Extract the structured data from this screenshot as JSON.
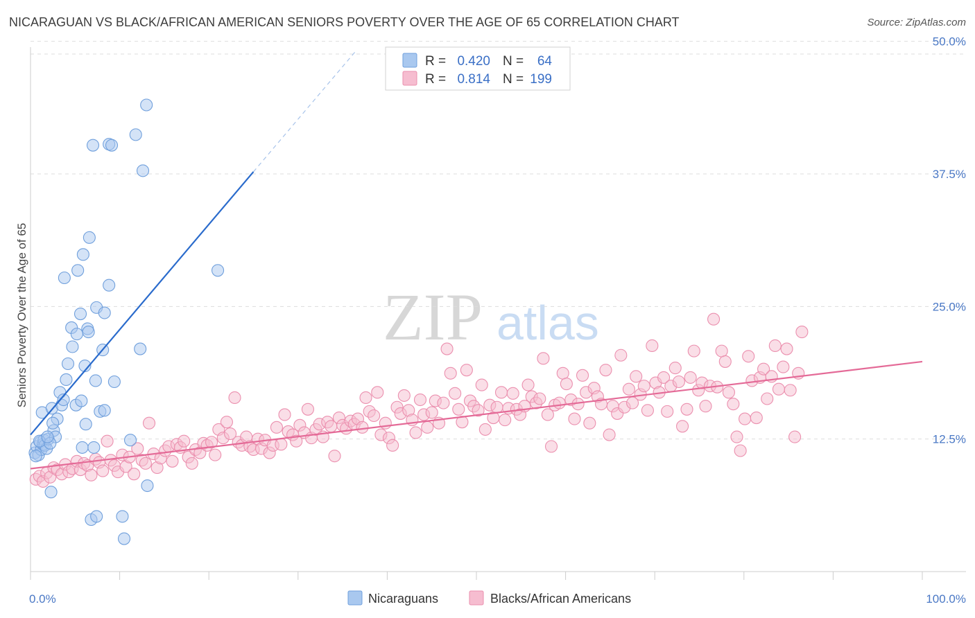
{
  "title": "NICARAGUAN VS BLACK/AFRICAN AMERICAN SENIORS POVERTY OVER THE AGE OF 65 CORRELATION CHART",
  "source": "Source: ZipAtlas.com",
  "watermark": {
    "zip": "ZIP",
    "atlas": "atlas"
  },
  "colors": {
    "blue_fill": "#a9c8ef",
    "blue_stroke": "#6f9fdc",
    "blue_line": "#2a6bcc",
    "pink_fill": "#f6bdd0",
    "pink_stroke": "#eb8fae",
    "pink_line": "#e46a97",
    "tick_label": "#4a78c5",
    "grid": "#dddddd"
  },
  "legend": {
    "rows": [
      {
        "r_label": "R =",
        "r_value": "0.420",
        "n_label": "N =",
        "n_value": "64",
        "color": "blue"
      },
      {
        "r_label": "R =",
        "r_value": "0.814",
        "n_label": "N =",
        "n_value": "199",
        "color": "pink"
      }
    ]
  },
  "bottom_legend": [
    {
      "label": "Nicaraguans",
      "color": "blue"
    },
    {
      "label": "Blacks/African Americans",
      "color": "pink"
    }
  ],
  "chart_data": {
    "type": "scatter",
    "title": "NICARAGUAN VS BLACK/AFRICAN AMERICAN SENIORS POVERTY OVER THE AGE OF 65 CORRELATION CHART",
    "xlabel": "",
    "ylabel": "Seniors Poverty Over the Age of 65",
    "xlim": [
      0,
      100
    ],
    "ylim": [
      0,
      52
    ],
    "x_tick_labels": [
      "0.0%",
      "100.0%"
    ],
    "y_ticks": [
      12.5,
      25.0,
      37.5,
      50.0
    ],
    "y_tick_labels": [
      "12.5%",
      "25.0%",
      "37.5%",
      "50.0%"
    ],
    "grid": "horizontal dashed",
    "legend_position": "top-center",
    "series": [
      {
        "name": "Nicaraguans",
        "color": "blue",
        "r": 0.42,
        "n": 64,
        "trend": {
          "x0": 0.0,
          "y0": 12.9,
          "x1": 25.0,
          "y1": 37.7,
          "dash_to_x": 36.5
        },
        "points": [
          [
            0.5,
            11.2
          ],
          [
            0.7,
            11.8
          ],
          [
            0.9,
            11.0
          ],
          [
            1.1,
            12.2
          ],
          [
            1.2,
            11.5
          ],
          [
            1.4,
            12.0
          ],
          [
            1.5,
            12.4
          ],
          [
            1.6,
            11.9
          ],
          [
            1.8,
            11.6
          ],
          [
            2.0,
            12.5
          ],
          [
            1.3,
            15.0
          ],
          [
            2.4,
            15.4
          ],
          [
            2.6,
            13.3
          ],
          [
            2.8,
            12.7
          ],
          [
            3.0,
            14.4
          ],
          [
            2.5,
            14.0
          ],
          [
            3.3,
            16.9
          ],
          [
            3.5,
            15.7
          ],
          [
            3.7,
            16.2
          ],
          [
            4.0,
            18.1
          ],
          [
            4.2,
            19.6
          ],
          [
            3.8,
            27.7
          ],
          [
            4.6,
            23.0
          ],
          [
            4.7,
            21.2
          ],
          [
            5.1,
            15.7
          ],
          [
            5.2,
            22.4
          ],
          [
            5.3,
            28.4
          ],
          [
            5.6,
            24.3
          ],
          [
            5.9,
            29.9
          ],
          [
            5.7,
            16.1
          ],
          [
            5.8,
            11.7
          ],
          [
            6.1,
            19.4
          ],
          [
            6.2,
            13.9
          ],
          [
            6.4,
            22.9
          ],
          [
            6.5,
            22.6
          ],
          [
            6.6,
            31.5
          ],
          [
            7.1,
            11.7
          ],
          [
            7.3,
            18.0
          ],
          [
            7.4,
            24.9
          ],
          [
            7.8,
            15.1
          ],
          [
            8.3,
            15.2
          ],
          [
            8.1,
            20.9
          ],
          [
            8.3,
            24.4
          ],
          [
            8.8,
            27.0
          ],
          [
            9.4,
            17.9
          ],
          [
            6.8,
            4.9
          ],
          [
            7.4,
            5.2
          ],
          [
            10.3,
            5.2
          ],
          [
            10.5,
            3.1
          ],
          [
            7.0,
            40.2
          ],
          [
            8.8,
            40.3
          ],
          [
            9.1,
            40.2
          ],
          [
            11.8,
            41.2
          ],
          [
            12.6,
            37.8
          ],
          [
            13.0,
            44.0
          ],
          [
            11.2,
            12.4
          ],
          [
            12.3,
            21.0
          ],
          [
            13.1,
            8.1
          ],
          [
            21.0,
            28.4
          ],
          [
            2.3,
            7.5
          ],
          [
            1.0,
            12.3
          ],
          [
            0.6,
            10.9
          ],
          [
            2.2,
            12.1
          ],
          [
            1.9,
            12.7
          ]
        ]
      },
      {
        "name": "Blacks/African Americans",
        "color": "pink",
        "r": 0.814,
        "n": 199,
        "trend": {
          "x0": 0.0,
          "y0": 9.7,
          "x1": 100.0,
          "y1": 19.8
        },
        "points": [
          [
            0.6,
            8.7
          ],
          [
            1.0,
            9.0
          ],
          [
            1.4,
            8.5
          ],
          [
            1.8,
            9.3
          ],
          [
            2.2,
            8.9
          ],
          [
            2.6,
            9.8
          ],
          [
            3.0,
            9.6
          ],
          [
            3.5,
            9.2
          ],
          [
            3.9,
            10.1
          ],
          [
            4.3,
            9.4
          ],
          [
            4.7,
            9.7
          ],
          [
            5.2,
            10.4
          ],
          [
            5.6,
            9.6
          ],
          [
            6.0,
            10.2
          ],
          [
            6.4,
            10.0
          ],
          [
            6.8,
            9.1
          ],
          [
            7.3,
            10.6
          ],
          [
            7.7,
            10.3
          ],
          [
            8.1,
            9.5
          ],
          [
            8.6,
            12.3
          ],
          [
            9.0,
            10.5
          ],
          [
            9.4,
            10.0
          ],
          [
            9.8,
            9.4
          ],
          [
            10.3,
            11.0
          ],
          [
            10.7,
            9.9
          ],
          [
            11.1,
            10.8
          ],
          [
            11.6,
            9.2
          ],
          [
            12.0,
            11.6
          ],
          [
            12.5,
            10.5
          ],
          [
            12.9,
            10.2
          ],
          [
            13.3,
            14.0
          ],
          [
            13.8,
            11.1
          ],
          [
            14.2,
            9.8
          ],
          [
            14.6,
            10.7
          ],
          [
            15.1,
            11.4
          ],
          [
            15.5,
            11.8
          ],
          [
            15.9,
            10.4
          ],
          [
            16.4,
            12.0
          ],
          [
            16.8,
            11.7
          ],
          [
            17.2,
            12.3
          ],
          [
            17.7,
            10.8
          ],
          [
            18.1,
            10.2
          ],
          [
            18.5,
            11.5
          ],
          [
            19.0,
            11.2
          ],
          [
            19.4,
            12.1
          ],
          [
            19.8,
            11.9
          ],
          [
            20.3,
            12.2
          ],
          [
            20.7,
            11.0
          ],
          [
            21.1,
            13.4
          ],
          [
            21.6,
            12.6
          ],
          [
            22.0,
            14.1
          ],
          [
            22.4,
            13.0
          ],
          [
            22.9,
            16.4
          ],
          [
            23.3,
            12.2
          ],
          [
            23.7,
            11.9
          ],
          [
            24.2,
            12.7
          ],
          [
            24.6,
            11.8
          ],
          [
            25.0,
            11.5
          ],
          [
            25.5,
            12.5
          ],
          [
            25.9,
            11.6
          ],
          [
            26.3,
            12.4
          ],
          [
            26.8,
            11.2
          ],
          [
            27.2,
            11.9
          ],
          [
            27.6,
            13.6
          ],
          [
            28.1,
            12.0
          ],
          [
            28.5,
            14.8
          ],
          [
            28.9,
            13.2
          ],
          [
            29.4,
            12.9
          ],
          [
            29.8,
            12.3
          ],
          [
            30.2,
            13.8
          ],
          [
            30.7,
            13.1
          ],
          [
            31.1,
            15.3
          ],
          [
            31.5,
            12.6
          ],
          [
            32.0,
            13.4
          ],
          [
            32.4,
            13.9
          ],
          [
            32.8,
            12.7
          ],
          [
            33.3,
            14.1
          ],
          [
            33.7,
            13.7
          ],
          [
            34.1,
            10.9
          ],
          [
            34.6,
            14.5
          ],
          [
            35.0,
            13.8
          ],
          [
            35.4,
            13.5
          ],
          [
            35.9,
            14.2
          ],
          [
            36.3,
            13.9
          ],
          [
            36.7,
            14.4
          ],
          [
            37.2,
            13.6
          ],
          [
            37.6,
            16.4
          ],
          [
            38.0,
            15.1
          ],
          [
            38.5,
            14.7
          ],
          [
            38.9,
            16.9
          ],
          [
            39.3,
            12.9
          ],
          [
            39.8,
            14.0
          ],
          [
            40.2,
            12.6
          ],
          [
            40.6,
            11.9
          ],
          [
            41.1,
            15.5
          ],
          [
            41.5,
            14.9
          ],
          [
            41.9,
            16.6
          ],
          [
            42.4,
            15.2
          ],
          [
            42.8,
            14.3
          ],
          [
            43.2,
            13.1
          ],
          [
            43.7,
            16.2
          ],
          [
            44.1,
            14.8
          ],
          [
            44.5,
            13.6
          ],
          [
            45.0,
            15.0
          ],
          [
            45.4,
            16.1
          ],
          [
            45.8,
            14.0
          ],
          [
            46.3,
            15.9
          ],
          [
            46.7,
            21.0
          ],
          [
            47.1,
            18.7
          ],
          [
            47.6,
            16.8
          ],
          [
            48.0,
            15.3
          ],
          [
            48.4,
            14.1
          ],
          [
            48.9,
            19.0
          ],
          [
            49.3,
            16.1
          ],
          [
            49.7,
            15.6
          ],
          [
            50.2,
            15.2
          ],
          [
            50.6,
            17.6
          ],
          [
            51.0,
            13.4
          ],
          [
            51.5,
            15.7
          ],
          [
            51.9,
            14.5
          ],
          [
            52.3,
            15.5
          ],
          [
            52.8,
            16.9
          ],
          [
            53.2,
            14.3
          ],
          [
            53.6,
            15.4
          ],
          [
            54.1,
            16.8
          ],
          [
            54.5,
            15.3
          ],
          [
            54.9,
            14.8
          ],
          [
            55.4,
            15.6
          ],
          [
            55.8,
            17.6
          ],
          [
            56.2,
            16.5
          ],
          [
            56.7,
            15.9
          ],
          [
            57.1,
            16.3
          ],
          [
            57.5,
            20.1
          ],
          [
            58.0,
            14.8
          ],
          [
            58.4,
            11.8
          ],
          [
            58.8,
            15.7
          ],
          [
            59.3,
            15.9
          ],
          [
            59.7,
            18.7
          ],
          [
            60.1,
            17.7
          ],
          [
            60.6,
            16.2
          ],
          [
            61.0,
            14.4
          ],
          [
            61.4,
            15.8
          ],
          [
            61.9,
            18.5
          ],
          [
            62.3,
            16.9
          ],
          [
            62.7,
            14.0
          ],
          [
            63.2,
            17.3
          ],
          [
            63.6,
            16.5
          ],
          [
            64.0,
            15.8
          ],
          [
            64.5,
            19.0
          ],
          [
            64.9,
            12.9
          ],
          [
            65.3,
            15.6
          ],
          [
            65.8,
            14.9
          ],
          [
            66.2,
            20.4
          ],
          [
            66.6,
            15.5
          ],
          [
            67.1,
            17.2
          ],
          [
            67.5,
            15.9
          ],
          [
            67.9,
            18.4
          ],
          [
            68.4,
            16.7
          ],
          [
            68.8,
            17.5
          ],
          [
            69.2,
            15.2
          ],
          [
            69.7,
            21.3
          ],
          [
            70.1,
            17.8
          ],
          [
            70.5,
            16.9
          ],
          [
            71.0,
            18.3
          ],
          [
            71.4,
            15.1
          ],
          [
            71.8,
            17.5
          ],
          [
            72.3,
            19.2
          ],
          [
            72.7,
            17.9
          ],
          [
            73.1,
            13.7
          ],
          [
            73.6,
            15.3
          ],
          [
            74.0,
            18.3
          ],
          [
            74.4,
            20.8
          ],
          [
            74.9,
            17.1
          ],
          [
            75.3,
            17.8
          ],
          [
            75.7,
            15.6
          ],
          [
            76.2,
            17.5
          ],
          [
            76.6,
            23.8
          ],
          [
            77.0,
            17.4
          ],
          [
            77.5,
            20.8
          ],
          [
            77.9,
            19.8
          ],
          [
            78.3,
            16.9
          ],
          [
            78.8,
            15.8
          ],
          [
            79.2,
            12.7
          ],
          [
            79.6,
            11.4
          ],
          [
            80.1,
            14.4
          ],
          [
            80.5,
            20.3
          ],
          [
            80.9,
            18.0
          ],
          [
            81.4,
            14.5
          ],
          [
            81.8,
            18.3
          ],
          [
            82.2,
            19.1
          ],
          [
            82.6,
            16.3
          ],
          [
            83.1,
            18.4
          ],
          [
            83.5,
            21.3
          ],
          [
            83.9,
            17.2
          ],
          [
            84.4,
            19.3
          ],
          [
            84.8,
            21.0
          ],
          [
            85.2,
            17.1
          ],
          [
            85.7,
            12.7
          ],
          [
            86.1,
            18.7
          ],
          [
            86.5,
            22.6
          ]
        ]
      }
    ]
  }
}
